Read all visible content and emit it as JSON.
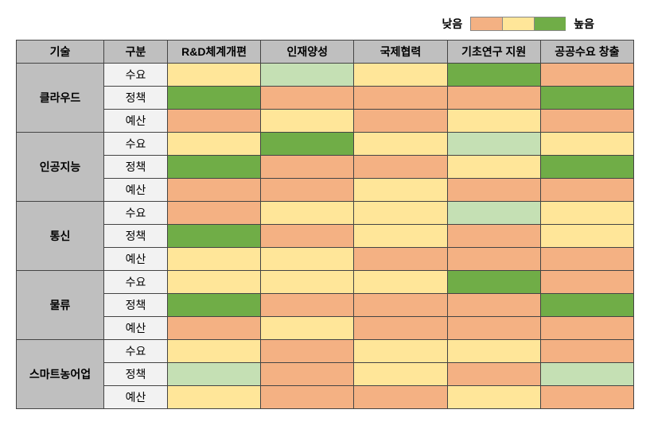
{
  "legend": {
    "low_label": "낮음",
    "high_label": "높음",
    "swatches": [
      "#f4b183",
      "#ffe699",
      "#70ad47"
    ]
  },
  "columns": {
    "tech": "기술",
    "sub": "구분",
    "c1": "R&D체계개편",
    "c2": "인재양성",
    "c3": "국제협력",
    "c4": "기초연구 지원",
    "c5": "공공수요 창출"
  },
  "sub_labels": {
    "r1": "수요",
    "r2": "정책",
    "r3": "예산"
  },
  "groups": [
    {
      "name": "클라우드",
      "rows": [
        {
          "cells": [
            "#ffe699",
            "#c5e0b4",
            "#ffe699",
            "#70ad47",
            "#f4b183"
          ]
        },
        {
          "cells": [
            "#70ad47",
            "#f4b183",
            "#f4b183",
            "#f4b183",
            "#70ad47"
          ]
        },
        {
          "cells": [
            "#f4b183",
            "#ffe699",
            "#f4b183",
            "#ffe699",
            "#f4b183"
          ]
        }
      ]
    },
    {
      "name": "인공지능",
      "rows": [
        {
          "cells": [
            "#ffe699",
            "#70ad47",
            "#ffe699",
            "#c5e0b4",
            "#ffe699"
          ]
        },
        {
          "cells": [
            "#70ad47",
            "#f4b183",
            "#f4b183",
            "#ffe699",
            "#70ad47"
          ]
        },
        {
          "cells": [
            "#f4b183",
            "#f4b183",
            "#ffe699",
            "#f4b183",
            "#f4b183"
          ]
        }
      ]
    },
    {
      "name": "통신",
      "rows": [
        {
          "cells": [
            "#f4b183",
            "#ffe699",
            "#ffe699",
            "#c5e0b4",
            "#ffe699"
          ]
        },
        {
          "cells": [
            "#70ad47",
            "#f4b183",
            "#ffe699",
            "#f4b183",
            "#ffe699"
          ]
        },
        {
          "cells": [
            "#ffe699",
            "#ffe699",
            "#f4b183",
            "#f4b183",
            "#f4b183"
          ]
        }
      ]
    },
    {
      "name": "물류",
      "rows": [
        {
          "cells": [
            "#ffe699",
            "#ffe699",
            "#ffe699",
            "#70ad47",
            "#f4b183"
          ]
        },
        {
          "cells": [
            "#70ad47",
            "#f4b183",
            "#f4b183",
            "#f4b183",
            "#70ad47"
          ]
        },
        {
          "cells": [
            "#f4b183",
            "#ffe699",
            "#f4b183",
            "#f4b183",
            "#f4b183"
          ]
        }
      ]
    },
    {
      "name": "스마트농어업",
      "rows": [
        {
          "cells": [
            "#ffe699",
            "#f4b183",
            "#ffe699",
            "#ffe699",
            "#f4b183"
          ]
        },
        {
          "cells": [
            "#c5e0b4",
            "#f4b183",
            "#ffe699",
            "#f4b183",
            "#c5e0b4"
          ]
        },
        {
          "cells": [
            "#ffe699",
            "#f4b183",
            "#f4b183",
            "#ffe699",
            "#f4b183"
          ]
        }
      ]
    }
  ]
}
